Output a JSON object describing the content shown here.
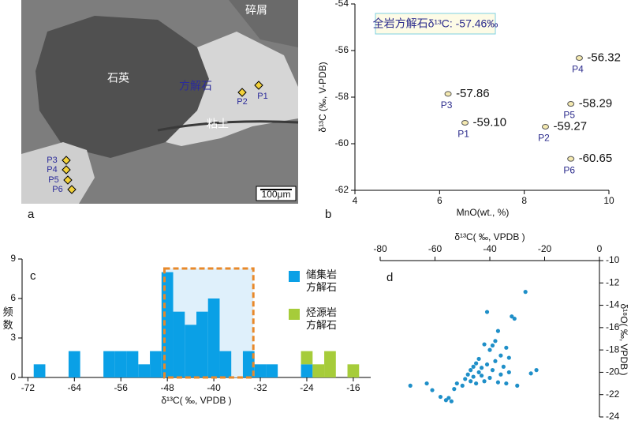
{
  "panel_a": {
    "label": "a",
    "quartz": "石英",
    "calcite": "方解石",
    "debris": "碎屑",
    "clay": "粘土",
    "points": [
      "P1",
      "P2",
      "P3",
      "P4",
      "P5",
      "P6"
    ],
    "scale_bar": "100μm"
  },
  "chart_data": [
    {
      "type": "scatter",
      "panel_label": "b",
      "annotation": "全岩方解石δ¹³C: -57.46‰",
      "xlabel": "MnO(wt., %)",
      "ylabel": "δ¹³C (‰, V-PDB)",
      "xlim": [
        4,
        10
      ],
      "xticks": [
        4,
        6,
        8,
        10
      ],
      "ylim": [
        -62,
        -54
      ],
      "yticks": [
        -62,
        -60,
        -58,
        -56,
        -54
      ],
      "x_axis": "bottom",
      "y_axis": "left",
      "color": "#555555",
      "label_color": "#2b2b8c",
      "point_labels": [
        "P1",
        "P2",
        "P3",
        "P4",
        "P5",
        "P6"
      ],
      "x": [
        6.6,
        8.5,
        6.2,
        9.3,
        9.1,
        9.1
      ],
      "values": [
        -59.1,
        -59.27,
        -57.86,
        -56.32,
        -58.29,
        -60.65
      ],
      "value_labels": [
        "-59.10",
        "-59.27",
        "-57.86",
        "-56.32",
        "-58.29",
        "-60.65"
      ]
    },
    {
      "type": "histogram",
      "panel_label": "c",
      "xlabel": "δ¹³C( ‰, VPDB )",
      "ylabel": "频 数",
      "xlim": [
        -73,
        -13
      ],
      "xticks": [
        -72,
        -64,
        -56,
        -48,
        -40,
        -32,
        -24,
        -16
      ],
      "ylim": [
        0,
        9
      ],
      "yticks": [
        0,
        3,
        6,
        9
      ],
      "x_axis": "bottom",
      "y_axis": "left",
      "stacked": true,
      "bins": [
        -71,
        -69,
        -67,
        -65,
        -63,
        -61,
        -59,
        -57,
        -55,
        -53,
        -51,
        -49,
        -47,
        -45,
        -43,
        -41,
        -39,
        -37,
        -35,
        -33,
        -31,
        -29,
        -27,
        -25,
        -23,
        -21,
        -19,
        -17,
        -15
      ],
      "series": [
        {
          "name": "储集岩方解石",
          "color": "#0aa0e6",
          "values": [
            1,
            0,
            0,
            2,
            0,
            0,
            2,
            2,
            2,
            1,
            2,
            8,
            5,
            4,
            5,
            6,
            2,
            0,
            2,
            1,
            1,
            0,
            0,
            1,
            0,
            0,
            0,
            0
          ]
        },
        {
          "name": "烃源岩方解石",
          "color": "#a6cc3a",
          "values": [
            0,
            0,
            0,
            0,
            0,
            0,
            0,
            0,
            0,
            0,
            0,
            0,
            0,
            0,
            0,
            0,
            0,
            0,
            0,
            0,
            0,
            0,
            0,
            1,
            1,
            2,
            0,
            1
          ]
        }
      ]
    },
    {
      "type": "scatter",
      "panel_label": "d",
      "xlabel": "δ¹³C( ‰, VPDB )",
      "ylabel": "δ¹⁸O( ‰, VPDB )",
      "xlim": [
        -80,
        0
      ],
      "xticks": [
        -80,
        -60,
        -40,
        -20,
        0
      ],
      "ylim": [
        -24,
        -10
      ],
      "yticks": [
        -24,
        -22,
        -20,
        -18,
        -16,
        -14,
        -12,
        -10
      ],
      "x_axis": "top",
      "y_axis": "right",
      "color": "#1f8fc8",
      "x": [
        -69,
        -63,
        -61,
        -58,
        -56,
        -55,
        -54,
        -53,
        -52,
        -50,
        -49,
        -48,
        -47,
        -47,
        -46,
        -46,
        -45,
        -45,
        -44,
        -44,
        -43,
        -43,
        -42,
        -42,
        -41,
        -41,
        -40,
        -40,
        -39,
        -38,
        -38,
        -37,
        -37,
        -36,
        -36,
        -35,
        -34,
        -34,
        -33,
        -32,
        -31,
        -30,
        -27,
        -25,
        -23,
        -33,
        -39
      ],
      "values": [
        -21.2,
        -21.0,
        -21.6,
        -22.2,
        -22.5,
        -22.3,
        -22.6,
        -21.5,
        -21.0,
        -21.2,
        -20.6,
        -20.2,
        -20.8,
        -19.8,
        -19.5,
        -20.4,
        -21.0,
        -19.2,
        -20.0,
        -18.8,
        -20.3,
        -19.6,
        -17.5,
        -20.8,
        -14.6,
        -19.3,
        -18.0,
        -20.5,
        -19.8,
        -17.2,
        -19.0,
        -16.3,
        -20.9,
        -18.5,
        -20.2,
        -19.5,
        -17.8,
        -21.0,
        -20.0,
        -15.0,
        -15.2,
        -21.2,
        -12.8,
        -20.1,
        -19.8,
        -18.7,
        -17.6
      ]
    }
  ]
}
